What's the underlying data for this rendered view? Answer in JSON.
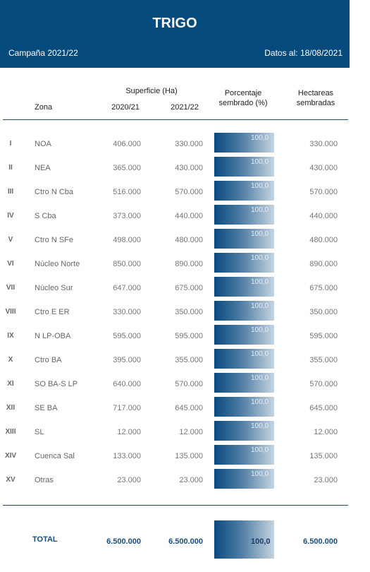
{
  "header": {
    "title": "TRIGO",
    "campaign": "Campaña 2021/22",
    "date": "Datos al: 18/08/2021"
  },
  "columns": {
    "superficie": "Superficie (Ha)",
    "zona": "Zona",
    "y2020": "2020/21",
    "y2021": "2021/22",
    "porcentaje_line1": "Porcentaje",
    "porcentaje_line2": "sembrado (%)",
    "hectareas_line1": "Hectareas",
    "hectareas_line2": "sembradas"
  },
  "rows": [
    {
      "num": "I",
      "zona": "NOA",
      "v2020": "406.000",
      "v2021": "330.000",
      "pct": "100,0",
      "ha": "330.000"
    },
    {
      "num": "II",
      "zona": "NEA",
      "v2020": "365.000",
      "v2021": "430.000",
      "pct": "100,0",
      "ha": "430.000"
    },
    {
      "num": "III",
      "zona": "Ctro N Cba",
      "v2020": "516.000",
      "v2021": "570.000",
      "pct": "100,0",
      "ha": "570.000"
    },
    {
      "num": "IV",
      "zona": "S Cba",
      "v2020": "373.000",
      "v2021": "440.000",
      "pct": "100,0",
      "ha": "440.000"
    },
    {
      "num": "V",
      "zona": "Ctro N SFe",
      "v2020": "498.000",
      "v2021": "480.000",
      "pct": "100,0",
      "ha": "480.000"
    },
    {
      "num": "VI",
      "zona": "Núcleo Norte",
      "v2020": "850.000",
      "v2021": "890.000",
      "pct": "100,0",
      "ha": "890.000"
    },
    {
      "num": "VII",
      "zona": "Núcleo Sur",
      "v2020": "647.000",
      "v2021": "675.000",
      "pct": "100,0",
      "ha": "675.000"
    },
    {
      "num": "VIII",
      "zona": "Ctro E ER",
      "v2020": "330.000",
      "v2021": "350.000",
      "pct": "100,0",
      "ha": "350.000"
    },
    {
      "num": "IX",
      "zona": "N LP-OBA",
      "v2020": "595.000",
      "v2021": "595.000",
      "pct": "100,0",
      "ha": "595.000"
    },
    {
      "num": "X",
      "zona": "Ctro BA",
      "v2020": "395.000",
      "v2021": "355.000",
      "pct": "100,0",
      "ha": "355.000"
    },
    {
      "num": "XI",
      "zona": "SO BA-S LP",
      "v2020": "640.000",
      "v2021": "570.000",
      "pct": "100,0",
      "ha": "570.000"
    },
    {
      "num": "XII",
      "zona": "SE BA",
      "v2020": "717.000",
      "v2021": "645.000",
      "pct": "100,0",
      "ha": "645.000"
    },
    {
      "num": "XIII",
      "zona": "SL",
      "v2020": "12.000",
      "v2021": "12.000",
      "pct": "100,0",
      "ha": "12.000"
    },
    {
      "num": "XIV",
      "zona": "Cuenca Sal",
      "v2020": "133.000",
      "v2021": "135.000",
      "pct": "100,0",
      "ha": "135.000"
    },
    {
      "num": "XV",
      "zona": "Otras",
      "v2020": "23.000",
      "v2021": "23.000",
      "pct": "100,0",
      "ha": "23.000"
    }
  ],
  "total": {
    "label": "TOTAL",
    "v2020": "6.500.000",
    "v2021": "6.500.000",
    "pct": "100,0",
    "ha": "6.500.000"
  },
  "colors": {
    "banner": "#044a7c",
    "bar_start": "#0a4a7e",
    "bar_end": "#c5d4e0"
  }
}
